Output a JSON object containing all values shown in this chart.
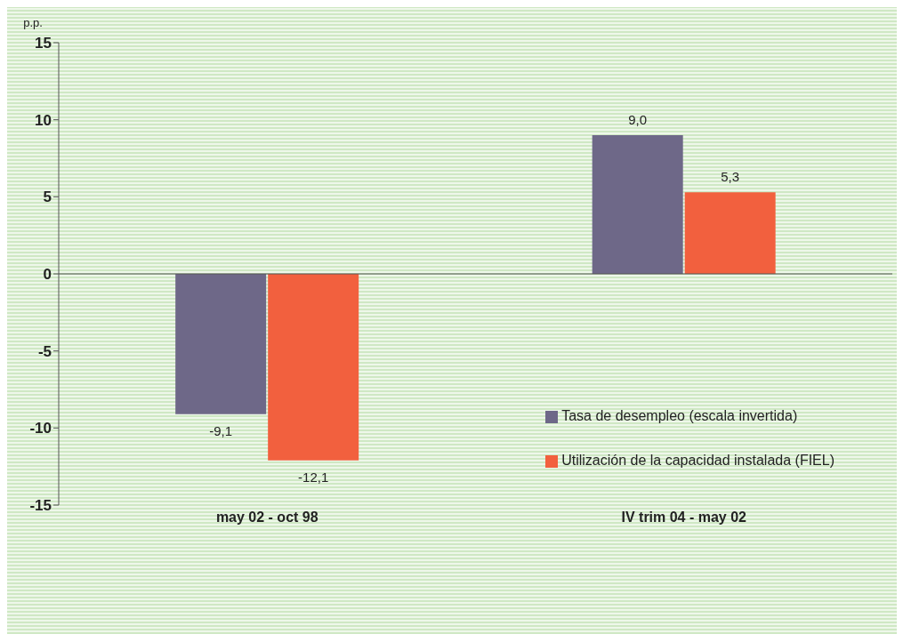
{
  "chart_data": {
    "type": "bar",
    "ylabel": "p.p.",
    "categories": [
      "may 02 - oct 98",
      "IV trim 04 - may 02"
    ],
    "series": [
      {
        "name": "Tasa de desempleo (escala invertida)",
        "color": "#6e6888",
        "values": [
          -9.1,
          9.0
        ],
        "value_labels": [
          "-9,1",
          "9,0"
        ]
      },
      {
        "name": "Utilización de la capacidad instalada (FIEL)",
        "color": "#f2603e",
        "values": [
          -12.1,
          5.3
        ],
        "value_labels": [
          "-12,1",
          "5,3"
        ]
      }
    ],
    "ylim": [
      -15,
      15
    ],
    "yticks": [
      -15,
      -10,
      -5,
      0,
      5,
      10,
      15
    ],
    "legend": "bottom right"
  }
}
